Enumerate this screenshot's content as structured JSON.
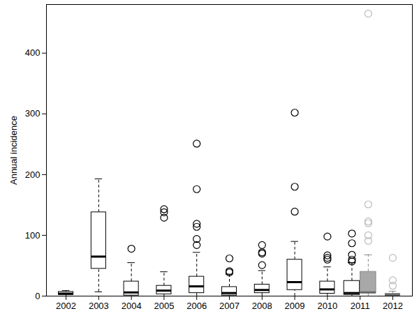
{
  "chart_data": {
    "type": "box",
    "y_label": "Annual incidence",
    "categories": [
      "2002",
      "2003",
      "2004",
      "2005",
      "2006",
      "2007",
      "2008",
      "2009",
      "2010",
      "2011",
      "2012"
    ],
    "ylim": [
      0,
      480
    ],
    "yticks": [
      0,
      100,
      200,
      300,
      400
    ],
    "grid": false,
    "series": [
      {
        "color": "#ffffff",
        "values": [
          {
            "low": 0,
            "q1": 2,
            "median": 4,
            "q3": 7,
            "high": 9,
            "outliers": []
          },
          {
            "low": 7,
            "q1": 45,
            "median": 65,
            "q3": 138,
            "high": 193,
            "outliers": []
          },
          {
            "low": 0,
            "q1": 1,
            "median": 6,
            "q3": 24,
            "high": 55,
            "outliers": [
              78
            ]
          },
          {
            "low": 0,
            "q1": 3,
            "median": 9,
            "q3": 17,
            "high": 40,
            "outliers": [
              129,
              138,
              143
            ]
          },
          {
            "low": 0,
            "q1": 5,
            "median": 16,
            "q3": 32,
            "high": 72,
            "outliers": [
              84,
              94,
              114,
              119,
              176,
              251
            ]
          },
          {
            "low": 0,
            "q1": 1,
            "median": 5,
            "q3": 15,
            "high": 36,
            "outliers": [
              39,
              41,
              62
            ]
          },
          {
            "low": 0,
            "q1": 5,
            "median": 10,
            "q3": 19,
            "high": 42,
            "outliers": [
              51,
              70,
              72,
              84
            ]
          },
          {
            "low": 0,
            "q1": 10,
            "median": 23,
            "q3": 60,
            "high": 90,
            "outliers": [
              139,
              180,
              302
            ]
          },
          {
            "low": 0,
            "q1": 4,
            "median": 11,
            "q3": 24,
            "high": 48,
            "outliers": [
              60,
              63,
              67,
              98
            ]
          },
          {
            "low": 0,
            "q1": 2,
            "median": 5,
            "q3": 25,
            "high": 55,
            "outliers": [
              57,
              60,
              68,
              87,
              103
            ]
          },
          null
        ]
      },
      {
        "color": "#a8a8a8",
        "values": [
          null,
          null,
          null,
          null,
          null,
          null,
          null,
          null,
          null,
          {
            "low": 0,
            "q1": 5,
            "median": 6,
            "q3": 40,
            "high": 68,
            "outliers": [
              91,
              100,
              120,
              123,
              151,
              465
            ]
          },
          {
            "low": 0,
            "q1": 0,
            "median": 2,
            "q3": 4,
            "high": 8,
            "outliers": [
              17,
              26,
              63
            ]
          }
        ]
      }
    ]
  }
}
